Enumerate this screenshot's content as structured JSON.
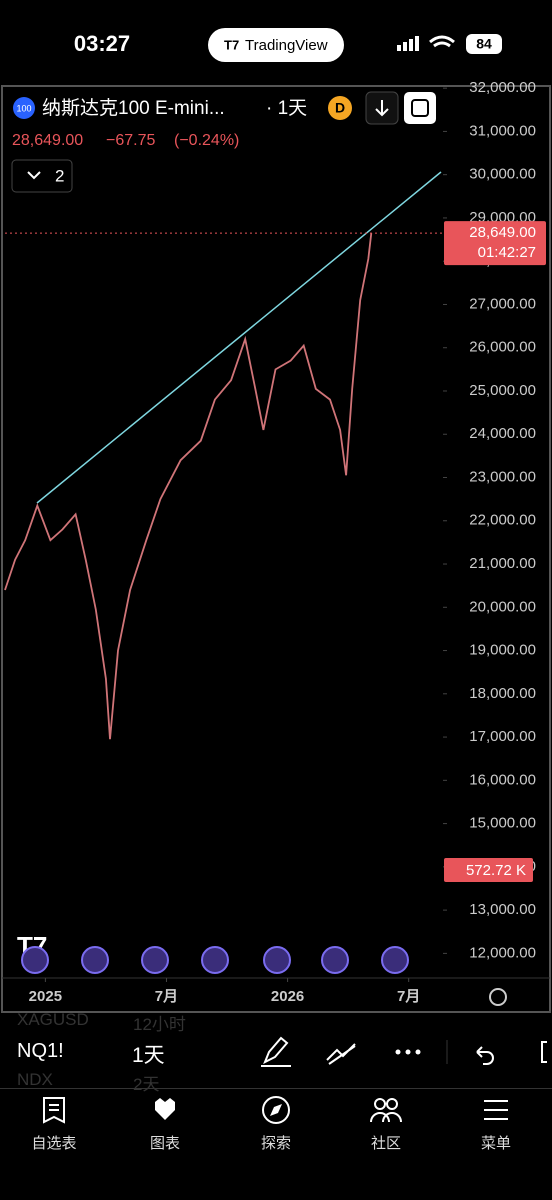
{
  "status_bar": {
    "time": "03:27",
    "app": "TradingView",
    "battery": "84"
  },
  "header": {
    "badge": "100",
    "symbol": "纳斯达克100 E-mini...",
    "interval": "· 1天",
    "exchange_badge": "D",
    "price": "28,649.00",
    "change": "−67.75",
    "change_pct": "(−0.24%)",
    "indicator_count": "2"
  },
  "chart_data": {
    "type": "line",
    "color": "#d07478",
    "x": [
      -2.0,
      -1.5,
      -1.0,
      -0.4,
      0.25,
      0.85,
      1.5,
      2.0,
      2.5,
      3.0,
      3.2,
      3.6,
      4.2,
      5.0,
      5.7,
      6.7,
      7.7,
      8.4,
      9.2,
      9.9,
      10.4,
      10.8,
      11.4,
      12.15,
      12.8,
      13.4,
      14.1,
      14.6,
      14.9,
      15.2,
      15.6,
      16.0,
      16.15
    ],
    "values": [
      20400,
      21100,
      21550,
      22350,
      21550,
      21800,
      22150,
      21100,
      19950,
      18350,
      16950,
      19000,
      20400,
      21550,
      22500,
      23400,
      23850,
      24800,
      25250,
      26200,
      25050,
      24100,
      25500,
      25700,
      26050,
      25050,
      24800,
      24100,
      23050,
      25050,
      27100,
      28050,
      28649
    ],
    "xlim": [
      -2,
      19.7
    ],
    "xticks": [
      {
        "value": 0,
        "label": "2025"
      },
      {
        "value": 6,
        "label": "7月"
      },
      {
        "value": 12,
        "label": "2026"
      },
      {
        "value": 18,
        "label": "7月"
      }
    ],
    "ylim": [
      11500,
      32050
    ],
    "yticks": [
      {
        "value": 12000,
        "label": "12,000.00"
      },
      {
        "value": 13000,
        "label": "13,000.00"
      },
      {
        "value": 14000,
        "label": "14,000.00"
      },
      {
        "value": 15000,
        "label": "15,000.00"
      },
      {
        "value": 16000,
        "label": "16,000.00"
      },
      {
        "value": 17000,
        "label": "17,000.00"
      },
      {
        "value": 18000,
        "label": "18,000.00"
      },
      {
        "value": 19000,
        "label": "19,000.00"
      },
      {
        "value": 20000,
        "label": "20,000.00"
      },
      {
        "value": 21000,
        "label": "21,000.00"
      },
      {
        "value": 22000,
        "label": "22,000.00"
      },
      {
        "value": 23000,
        "label": "23,000.00"
      },
      {
        "value": 24000,
        "label": "24,000.00"
      },
      {
        "value": 25000,
        "label": "25,000.00"
      },
      {
        "value": 26000,
        "label": "26,000.00"
      },
      {
        "value": 27000,
        "label": "27,000.00"
      },
      {
        "value": 28000,
        "label": "28,000.00"
      },
      {
        "value": 29000,
        "label": "29,000.00"
      },
      {
        "value": 30000,
        "label": "30,000.00"
      },
      {
        "value": 31000,
        "label": "31,000.00"
      },
      {
        "value": 32000,
        "label": "32,000.00"
      }
    ],
    "grid": false,
    "countdown": "01:42:27",
    "volume_label": "572.72 K"
  },
  "toolbar": {
    "symbol": "NQ1!",
    "interval": "1天",
    "behind": [
      [
        "XAGUSD",
        "12小时"
      ],
      [
        "NDX",
        "2天"
      ]
    ]
  },
  "nav": [
    "自选表",
    "图表",
    "探索",
    "社区",
    "菜单"
  ]
}
